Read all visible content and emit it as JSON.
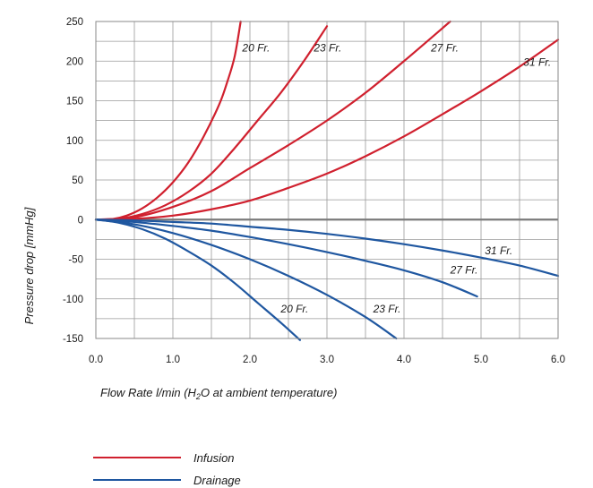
{
  "chart_data": {
    "type": "line",
    "ylabel": "Pressure drop [mmHg]",
    "xlabel_parts": {
      "prefix": "Flow Rate l/min (H",
      "sub": "2",
      "suffix": "O at ambient temperature)"
    },
    "xlim": [
      0,
      6
    ],
    "ylim": [
      -150,
      250
    ],
    "x_ticks": [
      "0.0",
      "1.0",
      "2.0",
      "3.0",
      "4.0",
      "5.0",
      "6.0"
    ],
    "x_tick_values": [
      0,
      1,
      2,
      3,
      4,
      5,
      6
    ],
    "y_ticks": [
      "250",
      "200",
      "150",
      "100",
      "50",
      "0",
      "-50",
      "-100",
      "-150"
    ],
    "y_tick_values": [
      250,
      200,
      150,
      100,
      50,
      0,
      -50,
      -100,
      -150
    ],
    "grid": true,
    "colors": {
      "infusion": "#d0202e",
      "drainage": "#1f57a0",
      "grid": "#9a9a9a",
      "zero_line": "#7a7a7a"
    },
    "legend": {
      "placement": "bottom-left",
      "entries": [
        {
          "label": "Infusion",
          "color": "#d0202e"
        },
        {
          "label": "Drainage",
          "color": "#1f57a0"
        }
      ]
    },
    "series": [
      {
        "group": "infusion",
        "label": "20 Fr.",
        "label_at": [
          1.9,
          212
        ],
        "x": [
          0,
          0.2,
          0.4,
          0.6,
          0.8,
          1.0,
          1.2,
          1.4,
          1.6,
          1.7,
          1.8,
          1.88
        ],
        "y": [
          0,
          0.5,
          5,
          14,
          28,
          47,
          72,
          105,
          145,
          172,
          205,
          250
        ]
      },
      {
        "group": "infusion",
        "label": "23 Fr.",
        "label_at": [
          2.83,
          212
        ],
        "x": [
          0,
          0.3,
          0.6,
          0.9,
          1.2,
          1.5,
          1.8,
          2.1,
          2.4,
          2.7,
          3.0
        ],
        "y": [
          0,
          1,
          7,
          18,
          35,
          58,
          90,
          125,
          160,
          200,
          244
        ]
      },
      {
        "group": "infusion",
        "label": "27 Fr.",
        "label_at": [
          4.35,
          212
        ],
        "x": [
          0,
          0.5,
          1.0,
          1.5,
          2.0,
          2.5,
          3.0,
          3.5,
          4.0,
          4.6
        ],
        "y": [
          0,
          3,
          16,
          36,
          65,
          94,
          125,
          160,
          200,
          250
        ]
      },
      {
        "group": "infusion",
        "label": "31 Fr.",
        "label_at": [
          5.55,
          194
        ],
        "x": [
          0,
          0.5,
          1.0,
          1.5,
          2.0,
          2.5,
          3.0,
          3.5,
          4.0,
          4.5,
          5.0,
          5.5,
          6.0
        ],
        "y": [
          0,
          1,
          5,
          13,
          24,
          40,
          58,
          80,
          105,
          133,
          162,
          193,
          227
        ]
      },
      {
        "group": "drainage",
        "label": "20 Fr.",
        "label_at": [
          2.4,
          -117
        ],
        "x": [
          0,
          0.3,
          0.6,
          0.9,
          1.2,
          1.5,
          1.8,
          2.1,
          2.4,
          2.65
        ],
        "y": [
          0,
          -4,
          -12,
          -24,
          -40,
          -58,
          -80,
          -105,
          -130,
          -152
        ]
      },
      {
        "group": "drainage",
        "label": "23 Fr.",
        "label_at": [
          3.6,
          -117
        ],
        "x": [
          0,
          0.5,
          1.0,
          1.5,
          2.0,
          2.5,
          3.0,
          3.5,
          3.9
        ],
        "y": [
          0,
          -6,
          -17,
          -32,
          -50,
          -71,
          -95,
          -123,
          -150
        ]
      },
      {
        "group": "drainage",
        "label": "27 Fr.",
        "label_at": [
          4.6,
          -68
        ],
        "x": [
          0,
          0.5,
          1.0,
          1.5,
          2.0,
          2.5,
          3.0,
          3.5,
          4.0,
          4.5,
          4.95
        ],
        "y": [
          0,
          -3,
          -8,
          -14,
          -22,
          -31,
          -41,
          -52,
          -64,
          -79,
          -97
        ]
      },
      {
        "group": "drainage",
        "label": "31 Fr.",
        "label_at": [
          5.05,
          -44
        ],
        "x": [
          0,
          0.5,
          1.0,
          1.5,
          2.0,
          2.5,
          3.0,
          3.5,
          4.0,
          4.5,
          5.0,
          5.5,
          6.0
        ],
        "y": [
          0,
          -1,
          -3,
          -5,
          -9,
          -13,
          -18,
          -24,
          -31,
          -39,
          -48,
          -58,
          -71
        ]
      }
    ]
  }
}
